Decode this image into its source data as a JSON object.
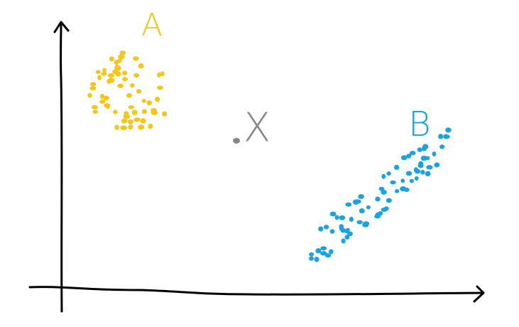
{
  "clusters": [
    {
      "label": "A"
    },
    {
      "label": "B"
    }
  ],
  "point": {
    "label": "X"
  }
}
